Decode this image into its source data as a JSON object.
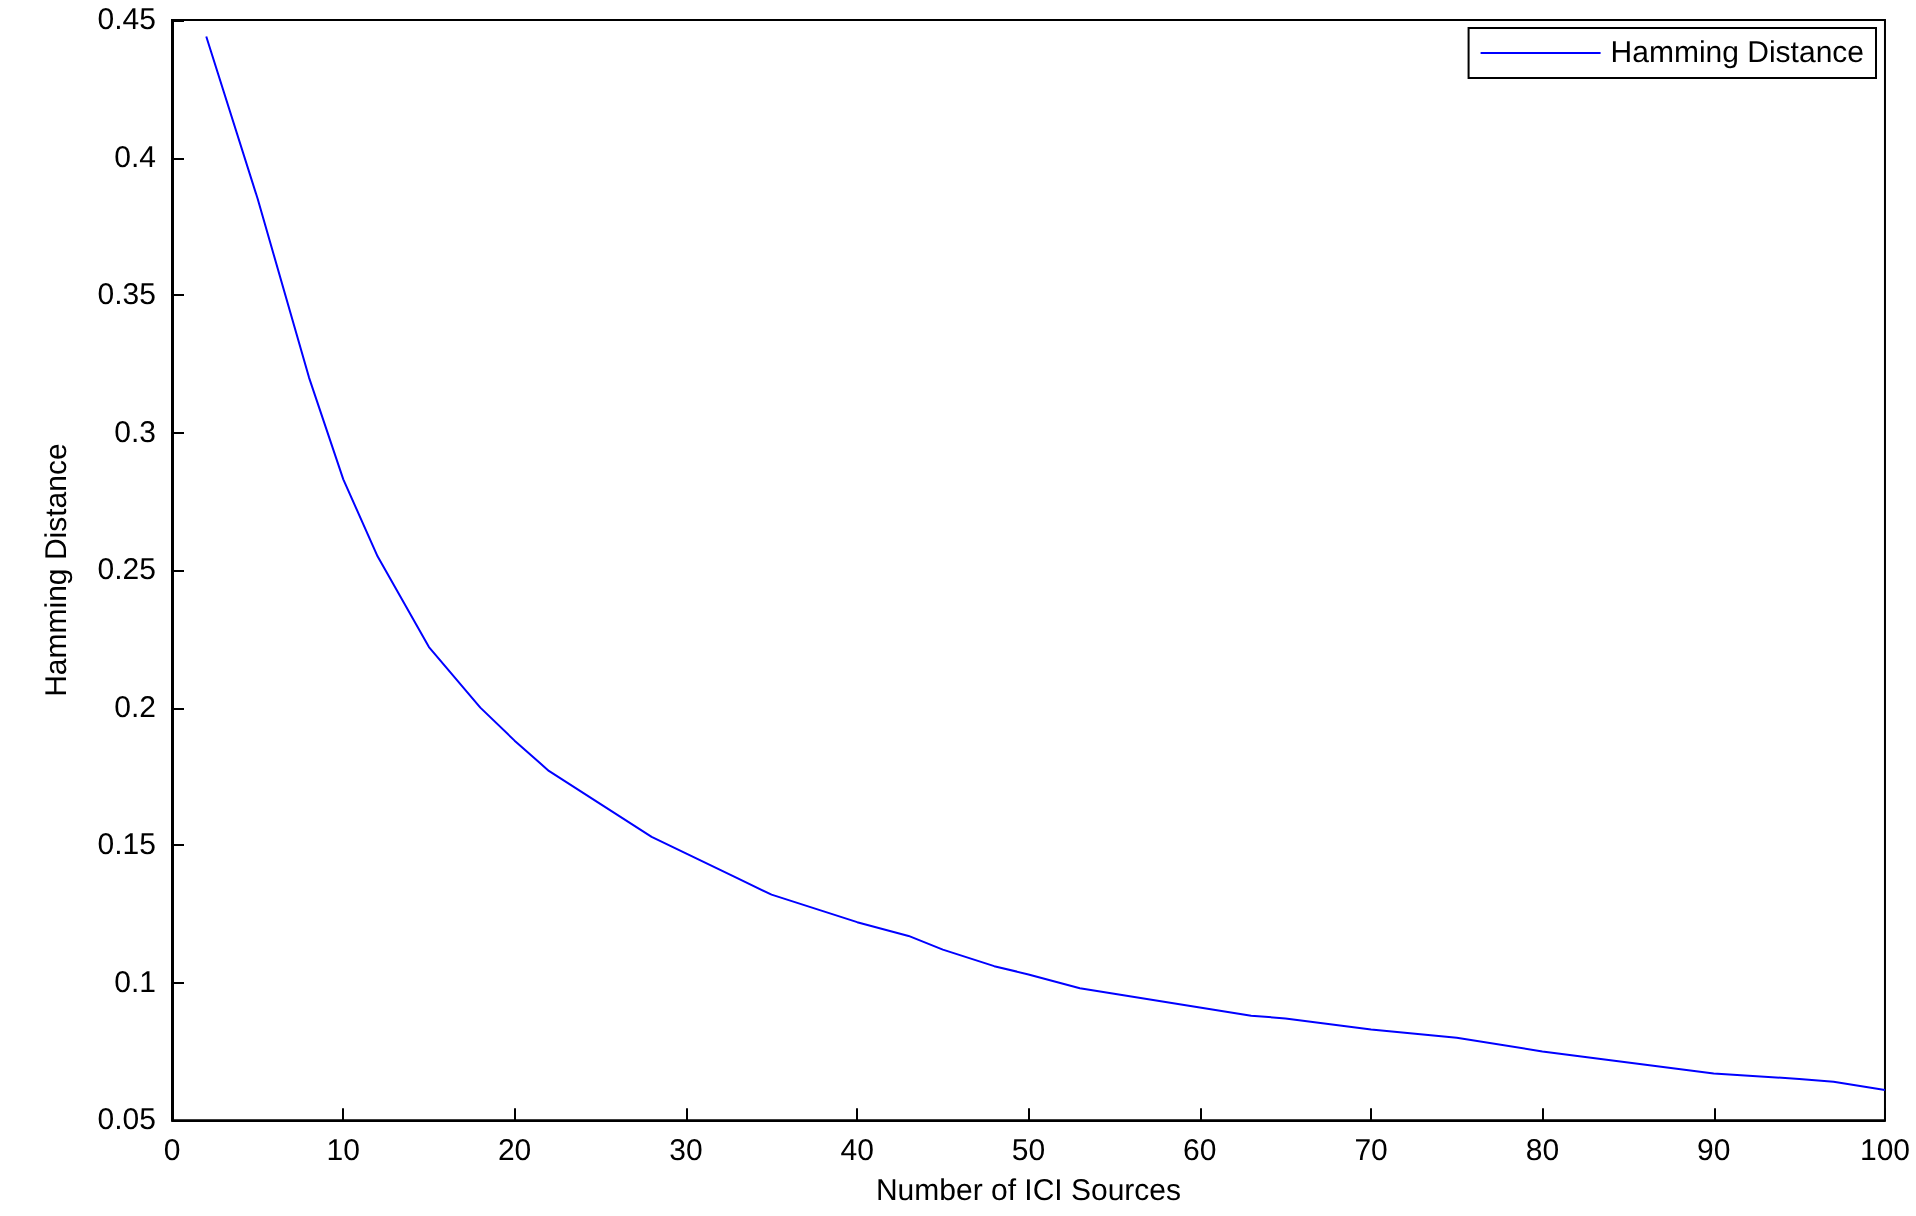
{
  "chart_data": {
    "type": "line",
    "xlabel": "Number of ICI Sources",
    "ylabel": "Hamming Distance",
    "xlim": [
      0,
      100
    ],
    "xticks": [
      0,
      10,
      20,
      30,
      40,
      50,
      60,
      70,
      80,
      90,
      100
    ],
    "ylim": [
      0.05,
      0.45
    ],
    "yticks": [
      0.05,
      0.1,
      0.15,
      0.2,
      0.25,
      0.3,
      0.35,
      0.4,
      0.45
    ],
    "grid": false,
    "legend": "top right",
    "marker": "none",
    "line_style": "solid",
    "series": [
      {
        "name": "Hamming Distance",
        "color": "#0000ff",
        "x": [
          2,
          5,
          8,
          10,
          12,
          15,
          18,
          20,
          22,
          25,
          28,
          30,
          33,
          35,
          38,
          40,
          43,
          45,
          48,
          50,
          53,
          55,
          60,
          63,
          65,
          70,
          75,
          80,
          85,
          90,
          95,
          97,
          100
        ],
        "values": [
          0.444,
          0.385,
          0.32,
          0.283,
          0.255,
          0.222,
          0.2,
          0.188,
          0.177,
          0.165,
          0.153,
          0.147,
          0.138,
          0.132,
          0.126,
          0.122,
          0.117,
          0.112,
          0.106,
          0.103,
          0.098,
          0.096,
          0.091,
          0.088,
          0.087,
          0.083,
          0.08,
          0.075,
          0.071,
          0.067,
          0.065,
          0.064,
          0.061
        ]
      }
    ]
  }
}
